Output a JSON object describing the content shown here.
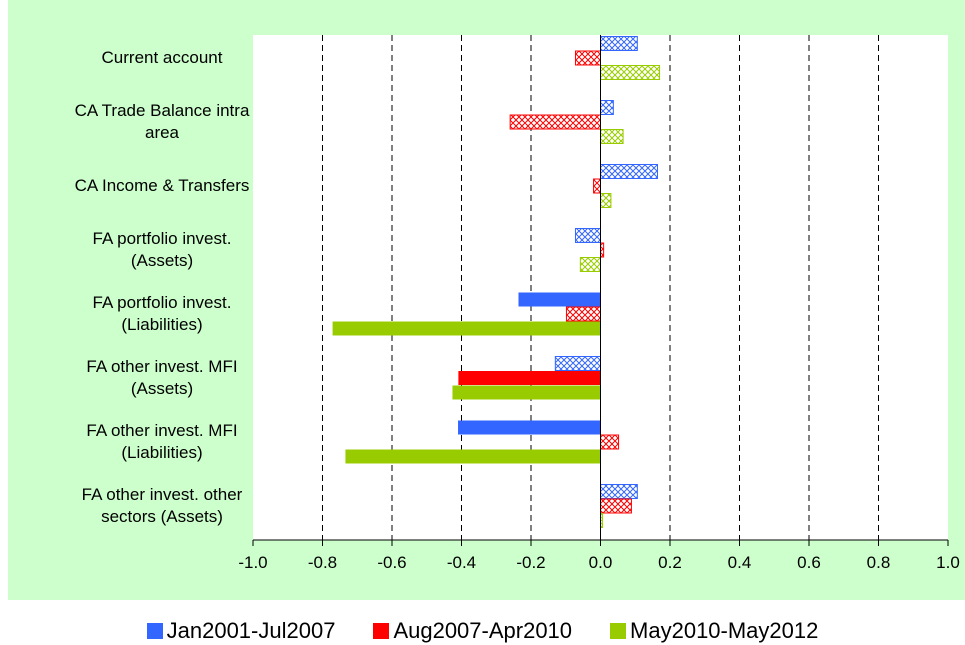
{
  "chart_data": {
    "type": "hbar",
    "categories": [
      "Current account",
      "CA Trade Balance intra\narea",
      "CA Income & Transfers",
      "FA portfolio invest.\n(Assets)",
      "FA portfolio invest.\n(Liabilities)",
      "FA other invest. MFI\n(Assets)",
      "FA other invest. MFI\n(Liabilities)",
      "FA other invest. other\nsectors (Assets)"
    ],
    "series": [
      {
        "name": "Jan2001-Jul2007",
        "color": "#3366ff",
        "values": [
          0.106,
          0.037,
          0.164,
          -0.072,
          -0.236,
          -0.13,
          -0.41,
          0.106
        ],
        "hatched": [
          true,
          true,
          true,
          true,
          false,
          true,
          false,
          true
        ]
      },
      {
        "name": "Aug2007-Apr2010",
        "color": "#ff0000",
        "values": [
          -0.072,
          -0.26,
          -0.02,
          0.009,
          -0.098,
          -0.409,
          0.052,
          0.089
        ],
        "hatched": [
          true,
          true,
          true,
          true,
          true,
          false,
          true,
          true
        ]
      },
      {
        "name": "May2010-May2012",
        "color": "#99cc00",
        "values": [
          0.17,
          0.065,
          0.03,
          -0.058,
          -0.771,
          -0.426,
          -0.734,
          0.006
        ],
        "hatched": [
          true,
          true,
          true,
          true,
          false,
          false,
          false,
          true
        ]
      }
    ],
    "xlim": [
      -1.0,
      1.0
    ],
    "xticks": [
      {
        "value": -1.0,
        "label": "-1.0"
      },
      {
        "value": -0.8,
        "label": "-0.8"
      },
      {
        "value": -0.6,
        "label": "-0.6"
      },
      {
        "value": -0.4,
        "label": "-0.4"
      },
      {
        "value": -0.2,
        "label": "-0.2"
      },
      {
        "value": 0.0,
        "label": "0.0"
      },
      {
        "value": 0.2,
        "label": "0.2"
      },
      {
        "value": 0.4,
        "label": "0.4"
      },
      {
        "value": 0.6,
        "label": "0.6"
      },
      {
        "value": 0.8,
        "label": "0.8"
      },
      {
        "value": 1.0,
        "label": "1.0"
      }
    ],
    "grid": true,
    "legend": "bottom"
  }
}
